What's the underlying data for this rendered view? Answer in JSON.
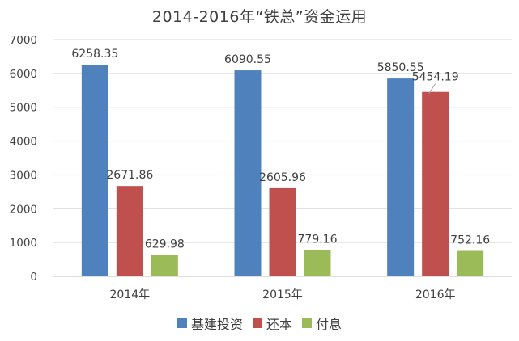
{
  "chart_data": {
    "type": "bar",
    "title": "2014-2016年“铁总”资金运用",
    "categories": [
      "2014年",
      "2015年",
      "2016年"
    ],
    "series": [
      {
        "name": "基建投资",
        "color": "#4f81bd",
        "values": [
          6258.35,
          6090.55,
          5850.55
        ],
        "labels": [
          "6258.35",
          "6090.55",
          "5850.55"
        ]
      },
      {
        "name": "还本",
        "color": "#c0504d",
        "values": [
          2671.86,
          2605.96,
          5454.19
        ],
        "labels": [
          "2671.86",
          "2605.96",
          "5454.19"
        ]
      },
      {
        "name": "付息",
        "color": "#9bbb59",
        "values": [
          629.98,
          779.16,
          752.16
        ],
        "labels": [
          "629.98",
          "779.16",
          "752.16"
        ]
      }
    ],
    "ylim": [
      0,
      7000
    ],
    "yticks": [
      0,
      1000,
      2000,
      3000,
      4000,
      5000,
      6000,
      7000
    ],
    "xlabel": "",
    "ylabel": "",
    "grid": true,
    "legend_position": "bottom"
  }
}
